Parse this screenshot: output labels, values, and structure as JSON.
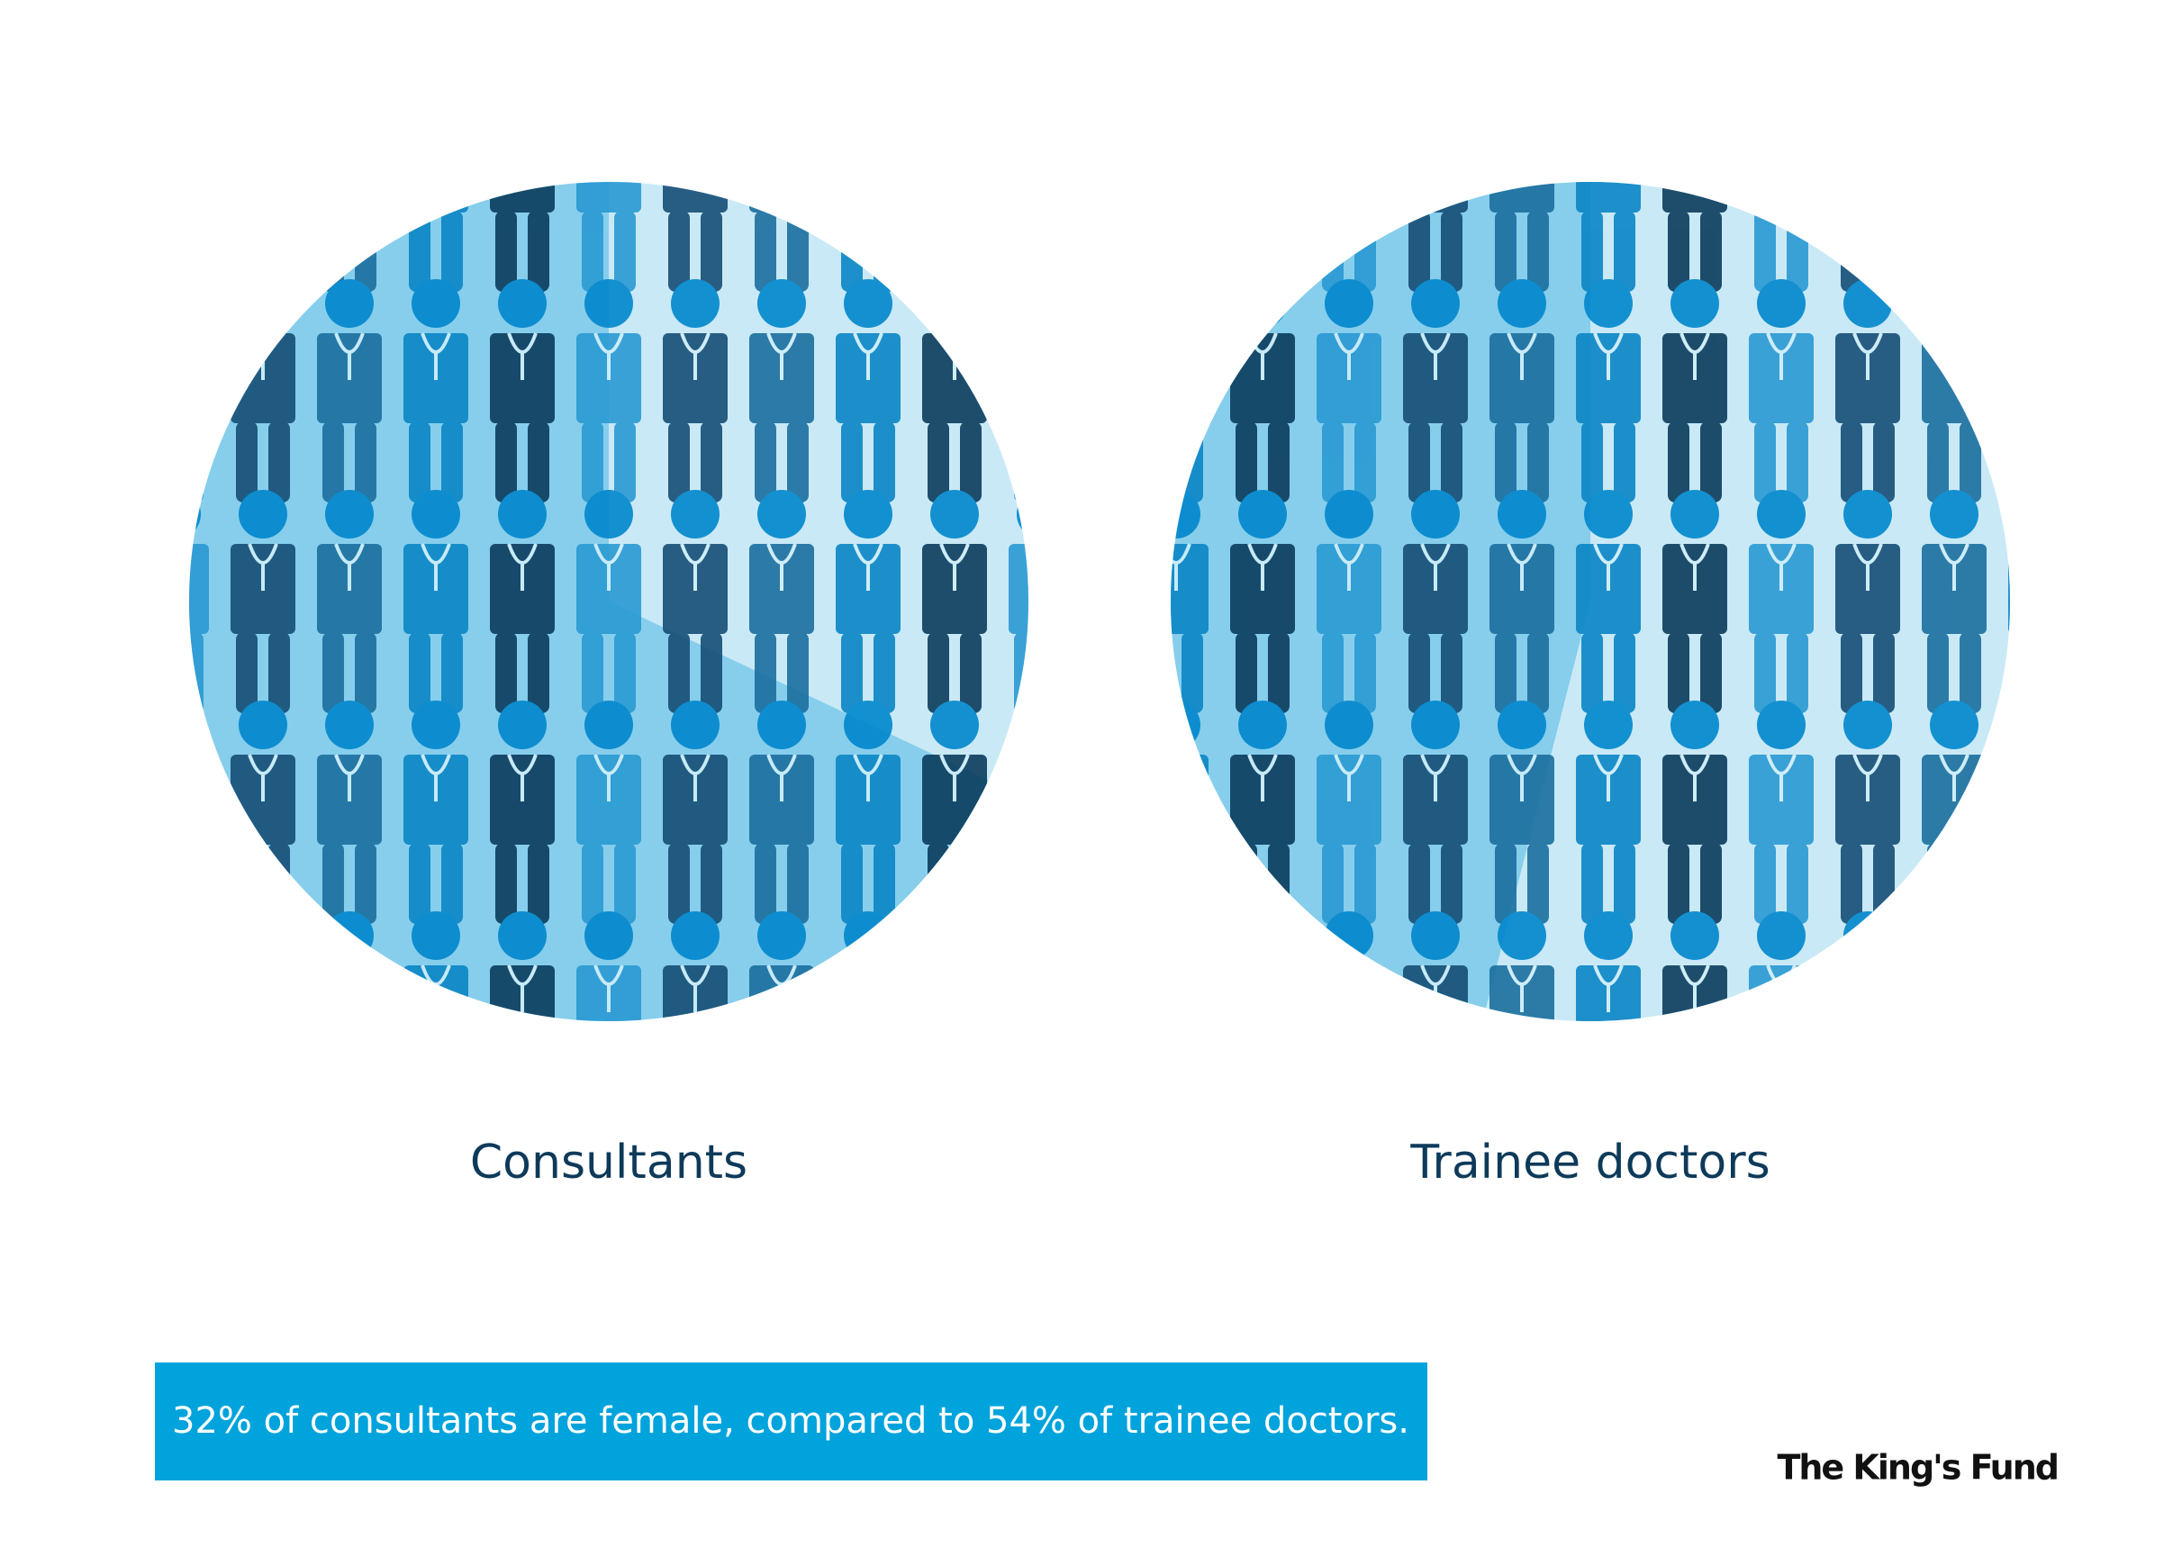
{
  "chart_data": [
    {
      "type": "pie",
      "title": "Consultants",
      "values": [
        32,
        68
      ],
      "colors": [
        "#c9e9f6",
        "#86ceec"
      ]
    },
    {
      "type": "pie",
      "title": "Trainee doctors",
      "values": [
        54,
        46
      ],
      "colors": [
        "#c9e9f6",
        "#86ceec"
      ]
    }
  ],
  "caption": "32% of consultants are female, compared to 54% of trainee doctors.",
  "logo": "The King's Fund"
}
